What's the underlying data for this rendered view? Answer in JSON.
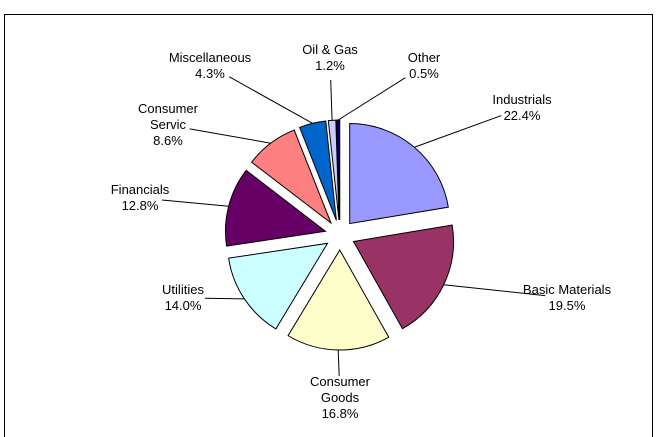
{
  "chart_data": {
    "type": "pie",
    "categories": [
      "Industrials",
      "Basic Materials",
      "Consumer Goods",
      "Utilities",
      "Financials",
      "Consumer Servic",
      "Miscellaneous",
      "Oil & Gas",
      "Other"
    ],
    "values": [
      22.4,
      19.5,
      16.8,
      14.0,
      12.8,
      8.6,
      4.3,
      1.2,
      0.5
    ],
    "value_labels": [
      "22.4%",
      "19.5%",
      "16.8%",
      "14.0%",
      "12.8%",
      "8.6%",
      "4.3%",
      "1.2%",
      "0.5%"
    ],
    "colors": [
      "#9999ff",
      "#993366",
      "#ffffcc",
      "#ccffff",
      "#660066",
      "#ff8080",
      "#0066cc",
      "#ccccff",
      "#000080"
    ]
  }
}
